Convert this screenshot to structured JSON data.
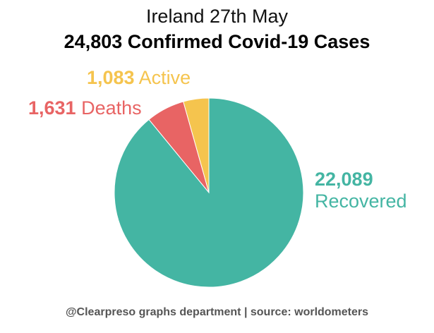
{
  "chart_data": {
    "type": "pie",
    "title": "Ireland 27th May",
    "subtitle": "24,803 Confirmed Covid-19 Cases",
    "footer": "@Clearpreso graphs department | source: worldometers",
    "slices": [
      {
        "value": 1083,
        "value_label": "1,083",
        "label": "Active",
        "color": "#f5c44e"
      },
      {
        "value": 1631,
        "value_label": "1,631",
        "label": "Deaths",
        "color": "#e86464"
      },
      {
        "value": 22089,
        "value_label": "22,089",
        "label": "Recovered",
        "color": "#44b5a3"
      }
    ],
    "start": "12 o'clock",
    "direction": "counterclockwise",
    "legend": "none"
  }
}
